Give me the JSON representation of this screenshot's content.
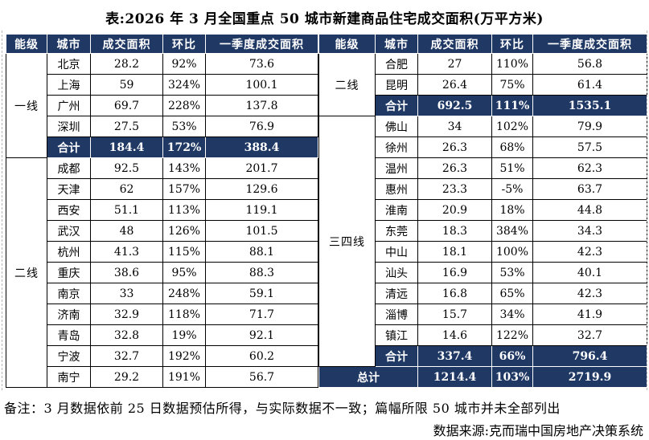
{
  "title": "表:2026 年 3 月全国重点 50 城市新建商品住宅成交面积(万平方米)",
  "colors": {
    "navy": "#1F3864",
    "header_text": "#FFFFFF",
    "border": "#000000"
  },
  "tables": {
    "headers": [
      "能级",
      "城市",
      "成交面积",
      "环比",
      "一季度成交面积"
    ],
    "left": {
      "rows": [
        {
          "tier": "一线",
          "tier_span": 5,
          "city": "北京",
          "area": "28.2",
          "mom": "92%",
          "q1": "73.6"
        },
        {
          "city": "上海",
          "area": "59",
          "mom": "324%",
          "q1": "100.1"
        },
        {
          "city": "广州",
          "area": "69.7",
          "mom": "228%",
          "q1": "137.8"
        },
        {
          "city": "深圳",
          "area": "27.5",
          "mom": "53%",
          "q1": "76.9"
        },
        {
          "city": "合计",
          "area": "184.4",
          "mom": "172%",
          "q1": "388.4",
          "highlight": true
        },
        {
          "tier": "二线",
          "tier_span": 11,
          "city": "成都",
          "area": "92.5",
          "mom": "143%",
          "q1": "201.7"
        },
        {
          "city": "天津",
          "area": "62",
          "mom": "157%",
          "q1": "129.6"
        },
        {
          "city": "西安",
          "area": "51.1",
          "mom": "113%",
          "q1": "119.1"
        },
        {
          "city": "武汉",
          "area": "48",
          "mom": "126%",
          "q1": "101.5"
        },
        {
          "city": "杭州",
          "area": "41.3",
          "mom": "115%",
          "q1": "88.1"
        },
        {
          "city": "重庆",
          "area": "38.6",
          "mom": "95%",
          "q1": "88.3"
        },
        {
          "city": "南京",
          "area": "33",
          "mom": "248%",
          "q1": "59.1"
        },
        {
          "city": "济南",
          "area": "32.9",
          "mom": "118%",
          "q1": "71.7"
        },
        {
          "city": "青岛",
          "area": "32.8",
          "mom": "19%",
          "q1": "92.1"
        },
        {
          "city": "宁波",
          "area": "32.7",
          "mom": "192%",
          "q1": "60.2"
        },
        {
          "city": "南宁",
          "area": "29.2",
          "mom": "191%",
          "q1": "56.7"
        }
      ]
    },
    "right": {
      "rows": [
        {
          "tier": "二线",
          "tier_span": 3,
          "city": "合肥",
          "area": "27",
          "mom": "110%",
          "q1": "56.8"
        },
        {
          "city": "昆明",
          "area": "26.4",
          "mom": "75%",
          "q1": "61.4"
        },
        {
          "city": "合计",
          "area": "692.5",
          "mom": "111%",
          "q1": "1535.1",
          "highlight": true
        },
        {
          "tier": "三四线",
          "tier_span": 12,
          "city": "佛山",
          "area": "34",
          "mom": "102%",
          "q1": "79.9"
        },
        {
          "city": "徐州",
          "area": "26.3",
          "mom": "68%",
          "q1": "57.5"
        },
        {
          "city": "温州",
          "area": "26.3",
          "mom": "51%",
          "q1": "62.3"
        },
        {
          "city": "惠州",
          "area": "23.3",
          "mom": "-5%",
          "q1": "63.7"
        },
        {
          "city": "淮南",
          "area": "20.9",
          "mom": "18%",
          "q1": "44.8"
        },
        {
          "city": "东莞",
          "area": "18.3",
          "mom": "384%",
          "q1": "34.3"
        },
        {
          "city": "中山",
          "area": "18.1",
          "mom": "100%",
          "q1": "42.3"
        },
        {
          "city": "汕头",
          "area": "16.9",
          "mom": "53%",
          "q1": "40.1"
        },
        {
          "city": "清远",
          "area": "16.8",
          "mom": "65%",
          "q1": "42.3"
        },
        {
          "city": "淄博",
          "area": "15.7",
          "mom": "34%",
          "q1": "41.9"
        },
        {
          "city": "镇江",
          "area": "14.6",
          "mom": "122%",
          "q1": "32.7"
        },
        {
          "city": "合计",
          "area": "337.4",
          "mom": "66%",
          "q1": "796.4",
          "highlight": true
        },
        {
          "city": "总计",
          "area": "1214.4",
          "mom": "103%",
          "q1": "2719.9",
          "highlight": true,
          "total": true
        }
      ]
    }
  },
  "notes": {
    "remark": "备注：3 月数据依前 25 日数据预估所得，与实际数据不一致；篇幅所限 50 城市并未全部列出",
    "source": "数据来源:克而瑞中国房地产决策系统"
  }
}
